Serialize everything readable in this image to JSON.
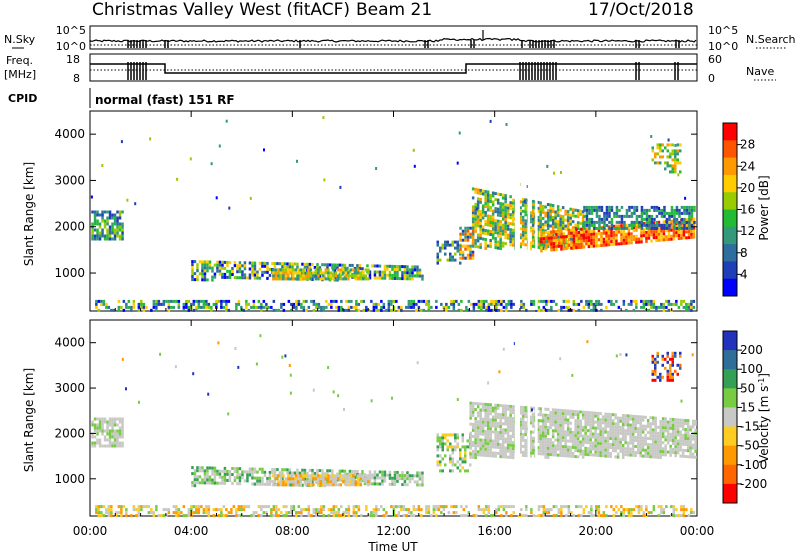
{
  "header": {
    "title": "Christmas Valley West (fitACF)",
    "beam": "Beam 21",
    "date": "17/Oct/2018"
  },
  "strip_panel": {
    "left_label": "N.Sky",
    "left_ticks": [
      "10^5",
      "10^0"
    ],
    "right_ticks": [
      "10^5",
      "10^0"
    ],
    "right_label": "N.Search"
  },
  "freq_panel": {
    "left_label_top": "Freq.",
    "left_label_bottom": "[MHz]",
    "left_ticks": [
      "18",
      "8"
    ],
    "right_ticks": [
      "60",
      "0"
    ],
    "right_label": "Nave"
  },
  "cpid": {
    "label": "CPID",
    "mode": "normal (fast) 151 RF"
  },
  "x_axis": {
    "label": "Time UT",
    "ticks": [
      "00:00",
      "04:00",
      "08:00",
      "12:00",
      "16:00",
      "20:00",
      "00:00"
    ]
  },
  "chart_data": [
    {
      "type": "heatmap",
      "ylabel": "Slant Range [km]",
      "y_ticks": [
        1000,
        2000,
        3000,
        4000
      ],
      "ylim": [
        180,
        4500
      ],
      "xlim": [
        0,
        24
      ],
      "colorbar": {
        "label": "Power [dB]",
        "ticks": [
          "28",
          "24",
          "20",
          "16",
          "12",
          "8",
          "4"
        ],
        "colors": [
          "#0000ff",
          "#1f3fb8",
          "#2e6e9e",
          "#33997a",
          "#22bb33",
          "#99cc00",
          "#ffcc00",
          "#ff9900",
          "#ff5500",
          "#ff0000"
        ]
      }
    },
    {
      "type": "heatmap",
      "ylabel": "Slant Range [km]",
      "y_ticks": [
        1000,
        2000,
        3000,
        4000
      ],
      "ylim": [
        180,
        4500
      ],
      "xlim": [
        0,
        24
      ],
      "colorbar": {
        "label": "Velocity [m s^-1]",
        "ticks": [
          "200",
          "100",
          "50",
          "15",
          "-15",
          "-50",
          "-100",
          "-200"
        ],
        "colors": [
          "#2233bb",
          "#2f6e99",
          "#33a055",
          "#77cc44",
          "#c8c8c4",
          "#ffcc22",
          "#ff9900",
          "#ff6600",
          "#ff0000"
        ]
      }
    }
  ],
  "colors": {
    "ground_scatter": "#c8c8c4"
  }
}
